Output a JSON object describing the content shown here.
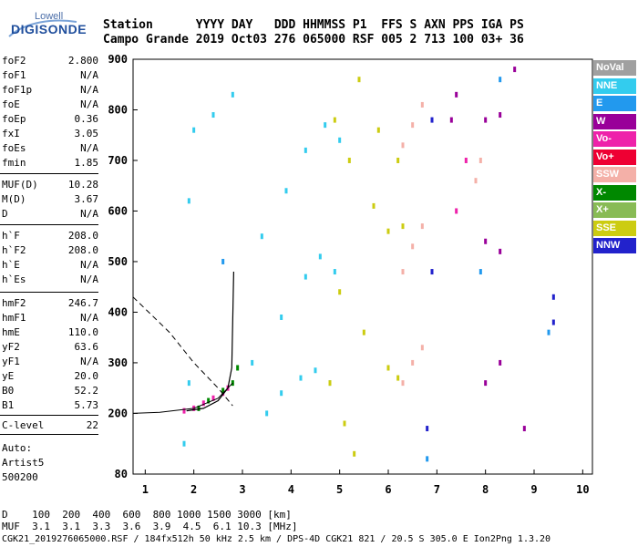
{
  "logo": {
    "top": "Lowell",
    "main": "DIGISONDE"
  },
  "header": {
    "row1": "Station      YYYY DAY   DDD HHMMSS P1  FFS S AXN PPS IGA PS",
    "row2": "Campo Grande 2019 Oct03 276 065000 RSF 005 2 713 100 03+ 36"
  },
  "params": [
    {
      "label": "foF2",
      "value": "2.800"
    },
    {
      "label": "foF1",
      "value": "N/A"
    },
    {
      "label": "foF1p",
      "value": "N/A"
    },
    {
      "label": "foE",
      "value": "N/A"
    },
    {
      "label": "foEp",
      "value": "0.36"
    },
    {
      "label": "fxI",
      "value": "3.05"
    },
    {
      "label": "foEs",
      "value": "N/A"
    },
    {
      "label": "fmin",
      "value": "1.85"
    },
    {
      "label": "MUF(D)",
      "value": "10.28"
    },
    {
      "label": "M(D)",
      "value": "3.67"
    },
    {
      "label": "D",
      "value": "N/A"
    },
    {
      "label": "h`F",
      "value": "208.0"
    },
    {
      "label": "h`F2",
      "value": "208.0"
    },
    {
      "label": "h`E",
      "value": "N/A"
    },
    {
      "label": "h`Es",
      "value": "N/A"
    },
    {
      "label": "hmF2",
      "value": "246.7"
    },
    {
      "label": "hmF1",
      "value": "N/A"
    },
    {
      "label": "hmE",
      "value": "110.0"
    },
    {
      "label": "yF2",
      "value": "63.6"
    },
    {
      "label": "yF1",
      "value": "N/A"
    },
    {
      "label": "yE",
      "value": "20.0"
    },
    {
      "label": "B0",
      "value": "52.2"
    },
    {
      "label": "B1",
      "value": "5.73"
    },
    {
      "label": "C-level",
      "value": "22"
    }
  ],
  "autoscaling": [
    "Auto:",
    "Artist5",
    "500200"
  ],
  "legend": [
    {
      "label": "NoVal",
      "color": "#a0a0a0"
    },
    {
      "label": "NNE",
      "color": "#33ccee"
    },
    {
      "label": "E",
      "color": "#2299ee"
    },
    {
      "label": "W",
      "color": "#990099"
    },
    {
      "label": "Vo-",
      "color": "#ee22aa"
    },
    {
      "label": "Vo+",
      "color": "#ee0033"
    },
    {
      "label": "SSW",
      "color": "#f4b0a8"
    },
    {
      "label": "X-",
      "color": "#008800"
    },
    {
      "label": "X+",
      "color": "#88bb55"
    },
    {
      "label": "SSE",
      "color": "#cccc11"
    },
    {
      "label": "NNW",
      "color": "#2222cc"
    }
  ],
  "bottom": {
    "row1": "D    100  200  400  600  800 1000 1500 3000 [km]",
    "row2": "MUF  3.1  3.1  3.3  3.6  3.9  4.5  6.1 10.3 [MHz]",
    "row3": "CGK21_2019276065000.RSF / 184fx512h 50 kHz 2.5 km / DPS-4D CGK21 821 / 20.5 S 305.0 E Ion2Png 1.3.20"
  },
  "chart_data": {
    "type": "scatter",
    "xlabel": "",
    "ylabel": "",
    "xlim": [
      0.75,
      10.2
    ],
    "ylim": [
      80,
      900
    ],
    "xticks": [
      1,
      2,
      3,
      4,
      5,
      6,
      7,
      8,
      9,
      10
    ],
    "yticks": [
      80,
      200,
      300,
      400,
      500,
      600,
      700,
      800,
      900
    ],
    "grid": false,
    "legend_position": "right",
    "profile": {
      "x": [
        1.85,
        2.2,
        2.5,
        2.7,
        2.78,
        2.8,
        2.82
      ],
      "y": [
        205,
        210,
        225,
        250,
        290,
        380,
        480
      ]
    },
    "trace_ordinary": {
      "x": [
        0.75,
        1.3,
        2.0,
        2.5,
        2.8
      ],
      "y": [
        200,
        202,
        210,
        230,
        260
      ]
    },
    "dashed_profile": {
      "x": [
        0.75,
        1.5,
        2.0,
        2.5,
        2.8
      ],
      "y": [
        430,
        360,
        300,
        250,
        215
      ]
    },
    "series": [
      {
        "name": "NNE",
        "color": "#33ccee",
        "points": [
          [
            3.5,
            200
          ],
          [
            3.8,
            240
          ],
          [
            4.2,
            270
          ],
          [
            4.5,
            285
          ],
          [
            4.8,
            260
          ],
          [
            3.2,
            300
          ],
          [
            3.8,
            390
          ],
          [
            4.3,
            470
          ],
          [
            4.6,
            510
          ],
          [
            4.9,
            480
          ],
          [
            3.4,
            550
          ],
          [
            3.9,
            640
          ],
          [
            4.3,
            720
          ],
          [
            4.7,
            770
          ],
          [
            5.0,
            740
          ],
          [
            1.8,
            140
          ],
          [
            1.9,
            260
          ],
          [
            1.9,
            620
          ],
          [
            2.0,
            760
          ],
          [
            2.4,
            790
          ],
          [
            2.8,
            830
          ]
        ]
      },
      {
        "name": "SSE",
        "color": "#cccc11",
        "points": [
          [
            4.8,
            260
          ],
          [
            5.1,
            180
          ],
          [
            5.3,
            120
          ],
          [
            5.0,
            440
          ],
          [
            5.5,
            360
          ],
          [
            6.0,
            290
          ],
          [
            6.2,
            270
          ],
          [
            5.2,
            700
          ],
          [
            5.7,
            610
          ],
          [
            6.0,
            560
          ],
          [
            6.3,
            570
          ],
          [
            4.9,
            780
          ],
          [
            5.4,
            860
          ],
          [
            5.8,
            760
          ],
          [
            6.2,
            700
          ]
        ]
      },
      {
        "name": "SSW",
        "color": "#f4b0a8",
        "points": [
          [
            6.3,
            260
          ],
          [
            6.5,
            300
          ],
          [
            6.7,
            330
          ],
          [
            6.3,
            480
          ],
          [
            6.5,
            530
          ],
          [
            6.7,
            570
          ],
          [
            6.3,
            730
          ],
          [
            6.5,
            770
          ],
          [
            6.7,
            810
          ],
          [
            7.8,
            660
          ],
          [
            7.9,
            700
          ]
        ]
      },
      {
        "name": "W",
        "color": "#990099",
        "points": [
          [
            8.0,
            260
          ],
          [
            8.3,
            300
          ],
          [
            8.0,
            540
          ],
          [
            8.3,
            520
          ],
          [
            8.0,
            780
          ],
          [
            8.3,
            790
          ],
          [
            8.6,
            880
          ],
          [
            8.8,
            170
          ],
          [
            7.3,
            780
          ],
          [
            7.4,
            830
          ]
        ]
      },
      {
        "name": "Vo-",
        "color": "#ee22aa",
        "points": [
          [
            1.8,
            205
          ],
          [
            2.0,
            210
          ],
          [
            2.2,
            220
          ],
          [
            2.4,
            230
          ],
          [
            2.6,
            240
          ],
          [
            2.7,
            250
          ],
          [
            7.4,
            600
          ],
          [
            7.6,
            700
          ]
        ]
      },
      {
        "name": "X-",
        "color": "#008800",
        "points": [
          [
            2.1,
            210
          ],
          [
            2.3,
            225
          ],
          [
            2.6,
            245
          ],
          [
            2.8,
            260
          ],
          [
            2.9,
            290
          ]
        ]
      },
      {
        "name": "NNW",
        "color": "#2222cc",
        "points": [
          [
            6.8,
            170
          ],
          [
            6.9,
            480
          ],
          [
            6.9,
            780
          ],
          [
            9.4,
            380
          ],
          [
            9.4,
            430
          ]
        ]
      },
      {
        "name": "E",
        "color": "#2299ee",
        "points": [
          [
            2.6,
            500
          ],
          [
            6.8,
            110
          ],
          [
            9.3,
            360
          ],
          [
            8.3,
            860
          ],
          [
            7.9,
            480
          ]
        ]
      }
    ]
  }
}
